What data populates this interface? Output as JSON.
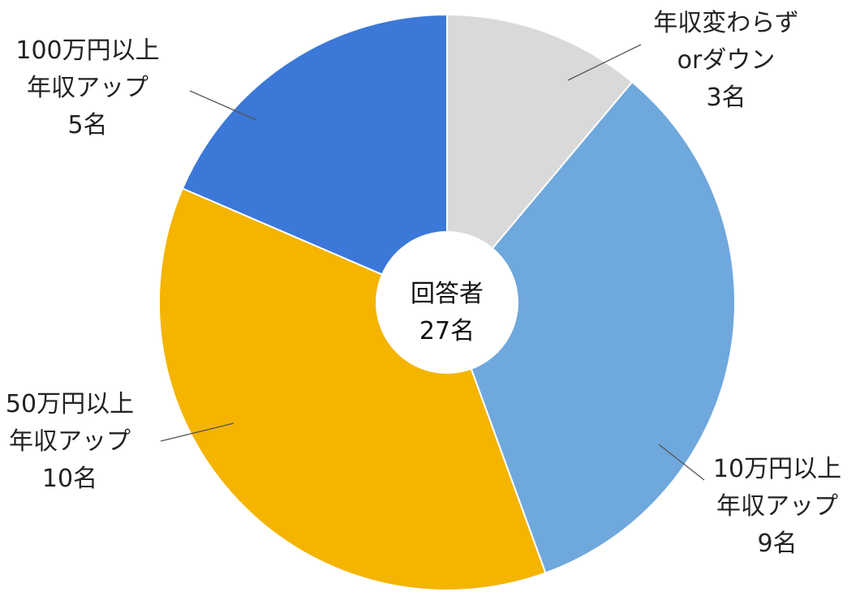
{
  "chart_data": {
    "type": "pie",
    "title": "",
    "center": {
      "line1": "回答者",
      "line2": "27名"
    },
    "total": 27,
    "slices": [
      {
        "key": "no-change",
        "value": 3,
        "label_lines": [
          "年収変わらず",
          "orダウン",
          "3名"
        ],
        "color": "#d9d9d9"
      },
      {
        "key": "10man",
        "value": 9,
        "label_lines": [
          "10万円以上",
          "年収アップ",
          "9名"
        ],
        "color": "#6fa8dc"
      },
      {
        "key": "50man",
        "value": 10,
        "label_lines": [
          "50万円以上",
          "年収アップ",
          "10名"
        ],
        "color": "#f4b400"
      },
      {
        "key": "100man",
        "value": 5,
        "label_lines": [
          "100万円以上",
          "年収アップ",
          "5名"
        ],
        "color": "#3c78d8"
      }
    ]
  }
}
